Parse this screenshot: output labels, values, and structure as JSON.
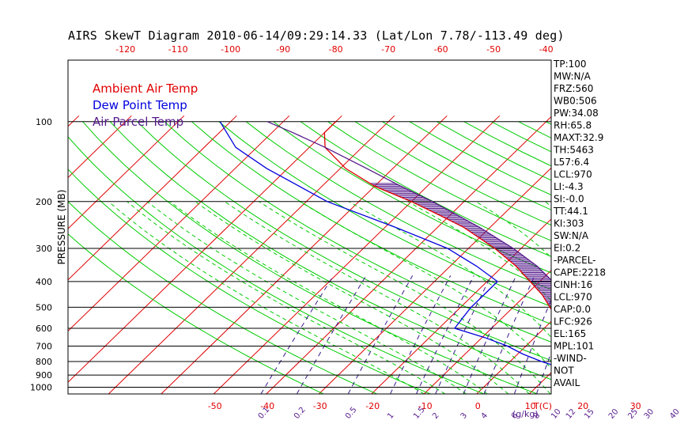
{
  "title": "AIRS SkewT Diagram 2010-06-14/09:29:14.33 (Lat/Lon 7.78/-113.49 deg)",
  "chart_data": {
    "type": "line",
    "title": "AIRS SkewT Diagram 2010-06-14/09:29:14.33 (Lat/Lon 7.78/-113.49 deg)",
    "ylabel": "PRESSURE (MB)",
    "xlabel": "T(C)",
    "mixing_ratio_label": "(g/kg)",
    "y_scale": "log",
    "ylim": [
      1050,
      100
    ],
    "pressure_ticks": [
      100,
      200,
      300,
      400,
      500,
      600,
      700,
      800,
      900,
      1000
    ],
    "bottom_temp_ticks": [
      "-50",
      "-40",
      "-30",
      "-20",
      "-10",
      "0",
      "10",
      "20",
      "30"
    ],
    "top_temp_ticks": [
      "-120",
      "-110",
      "-100",
      "-90",
      "-80",
      "-70",
      "-60",
      "-50",
      "-40"
    ],
    "mixing_ratio_ticks": [
      "0.1",
      "0.2",
      "0.5",
      "1",
      "1.5",
      "2",
      "3",
      "4",
      "6",
      "8",
      "10",
      "12",
      "15",
      "20",
      "25",
      "30",
      "40"
    ],
    "legend": [
      "Ambient Air Temp",
      "Dew Point Temp",
      "Air Parcel Temp"
    ],
    "legend_position": "top-left",
    "series": [
      {
        "name": "Ambient Air Temp",
        "color": "#e00000",
        "points": [
          [
            1000,
            26.8
          ],
          [
            975,
            24.2
          ],
          [
            950,
            23.3
          ],
          [
            925,
            22.2
          ],
          [
            900,
            21.0
          ],
          [
            850,
            18.3
          ],
          [
            800,
            15.4
          ],
          [
            750,
            12.5
          ],
          [
            700,
            9.8
          ],
          [
            650,
            7.0
          ],
          [
            600,
            4.0
          ],
          [
            550,
            0.5
          ],
          [
            500,
            -3.0
          ],
          [
            450,
            -6.8
          ],
          [
            400,
            -11.8
          ],
          [
            350,
            -17.5
          ],
          [
            300,
            -25.0
          ],
          [
            250,
            -35.0
          ],
          [
            225,
            -42.0
          ],
          [
            200,
            -50.0
          ],
          [
            175,
            -60.0
          ],
          [
            150,
            -69.0
          ],
          [
            125,
            -77.0
          ],
          [
            110,
            -80.0
          ],
          [
            100,
            -80.0
          ]
        ]
      },
      {
        "name": "Dew Point Temp",
        "color": "#0000dd",
        "points": [
          [
            1000,
            21.8
          ],
          [
            975,
            20.7
          ],
          [
            950,
            19.2
          ],
          [
            925,
            17.6
          ],
          [
            900,
            15.8
          ],
          [
            850,
            11.5
          ],
          [
            800,
            6.0
          ],
          [
            750,
            1.0
          ],
          [
            700,
            -3.5
          ],
          [
            650,
            -9.5
          ],
          [
            600,
            -17.0
          ],
          [
            550,
            -17.5
          ],
          [
            500,
            -18.0
          ],
          [
            450,
            -18.0
          ],
          [
            400,
            -18.0
          ],
          [
            350,
            -25.0
          ],
          [
            300,
            -34.0
          ],
          [
            250,
            -48.0
          ],
          [
            200,
            -66.0
          ],
          [
            150,
            -84.0
          ],
          [
            125,
            -94.0
          ],
          [
            100,
            -102.0
          ]
        ]
      },
      {
        "name": "Air Parcel Temp",
        "color": "#551a8b",
        "points": [
          [
            1000,
            26.8
          ],
          [
            970,
            24.0
          ],
          [
            926,
            22.2
          ],
          [
            900,
            21.4
          ],
          [
            850,
            19.8
          ],
          [
            800,
            18.0
          ],
          [
            700,
            14.0
          ],
          [
            600,
            8.7
          ],
          [
            500,
            1.9
          ],
          [
            400,
            -7.5
          ],
          [
            350,
            -13.5
          ],
          [
            300,
            -21.5
          ],
          [
            250,
            -32.0
          ],
          [
            200,
            -46.0
          ],
          [
            175,
            -55.0
          ],
          [
            150,
            -65.0
          ],
          [
            125,
            -77.0
          ],
          [
            110,
            -86.0
          ],
          [
            100,
            -93.0
          ]
        ]
      }
    ],
    "annotations": [
      "TP:100",
      "MW:N/A",
      "FRZ:560",
      "WB0:506",
      "PW:34.08",
      "RH:65.8",
      "MAXT:32.9",
      "TH:5463",
      "L57:6.4",
      "LCL:970",
      "LI:-4.3",
      "SI:-0.0",
      "TT:44.1",
      "KI:303",
      "SW:N/A",
      "EI:0.2",
      "-PARCEL-",
      "CAPE:2218",
      "CINH:16",
      "LCL:970",
      "CAP:0.0",
      "LFC:926",
      "EL:165",
      "MPL:101",
      "-WIND-",
      "NOT",
      "AVAIL"
    ],
    "colors": {
      "isotherm": "#e00000",
      "dry_adiabat": "#00cc00",
      "moist_adiabat": "#00cc00",
      "mixing_ratio": "#3a1a8c",
      "isobar": "#000000",
      "cape_hatch": "#551a8b"
    }
  }
}
